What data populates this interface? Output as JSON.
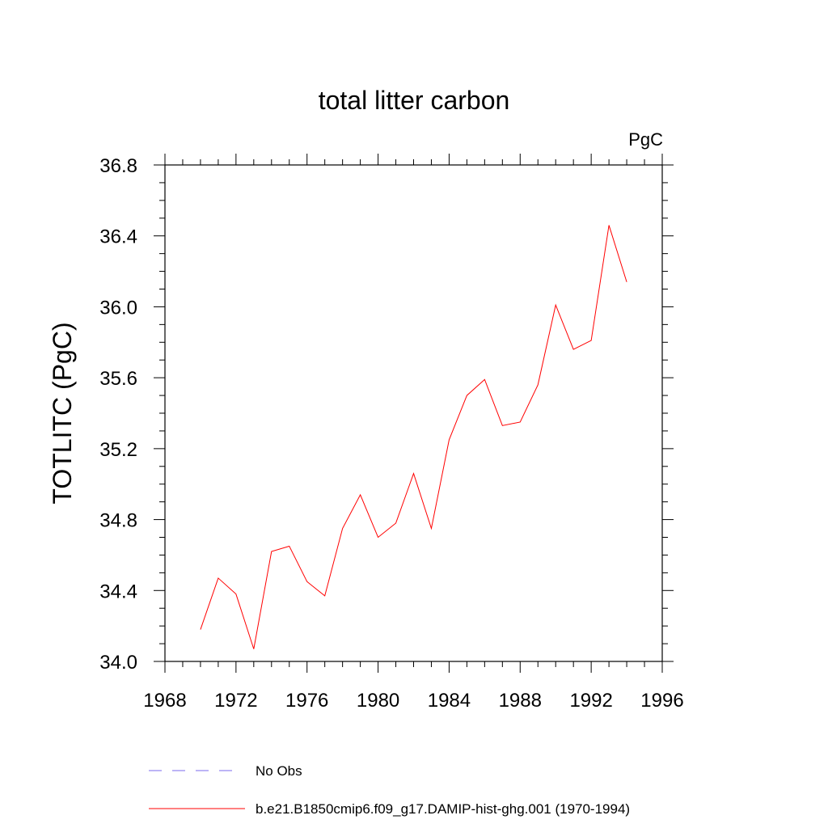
{
  "chart_data": {
    "type": "line",
    "title": "total litter carbon",
    "units_label": "PgC",
    "ylabel": "TOTLITC  (PgC)",
    "xlabel": "",
    "xlim": [
      1968,
      1996
    ],
    "ylim": [
      34.0,
      36.8
    ],
    "x_ticks": [
      "1968",
      "1972",
      "1976",
      "1980",
      "1984",
      "1988",
      "1992",
      "1996"
    ],
    "y_ticks": [
      "34.0",
      "34.4",
      "34.8",
      "35.2",
      "35.6",
      "36.0",
      "36.4",
      "36.8"
    ],
    "grid": false,
    "legend_position": "bottom",
    "x": [
      1970,
      1971,
      1972,
      1973,
      1974,
      1975,
      1976,
      1977,
      1978,
      1979,
      1980,
      1981,
      1982,
      1983,
      1984,
      1985,
      1986,
      1987,
      1988,
      1989,
      1990,
      1991,
      1992,
      1993,
      1994
    ],
    "series": [
      {
        "name": "b.e21.B1850cmip6.f09_g17.DAMIP-hist-ghg.001 (1970-1994)",
        "color": "#ff0000",
        "style": "solid",
        "values": [
          34.18,
          34.47,
          34.38,
          34.07,
          34.62,
          34.65,
          34.45,
          34.37,
          34.75,
          34.94,
          34.7,
          34.78,
          35.06,
          34.75,
          35.25,
          35.5,
          35.59,
          35.33,
          35.35,
          35.56,
          36.01,
          35.76,
          35.81,
          36.46,
          36.14
        ]
      }
    ],
    "legend": [
      {
        "label": "No Obs",
        "color": "#7b68ee",
        "style": "dashed"
      },
      {
        "label": "b.e21.B1850cmip6.f09_g17.DAMIP-hist-ghg.001 (1970-1994)",
        "color": "#ff0000",
        "style": "solid"
      }
    ]
  }
}
